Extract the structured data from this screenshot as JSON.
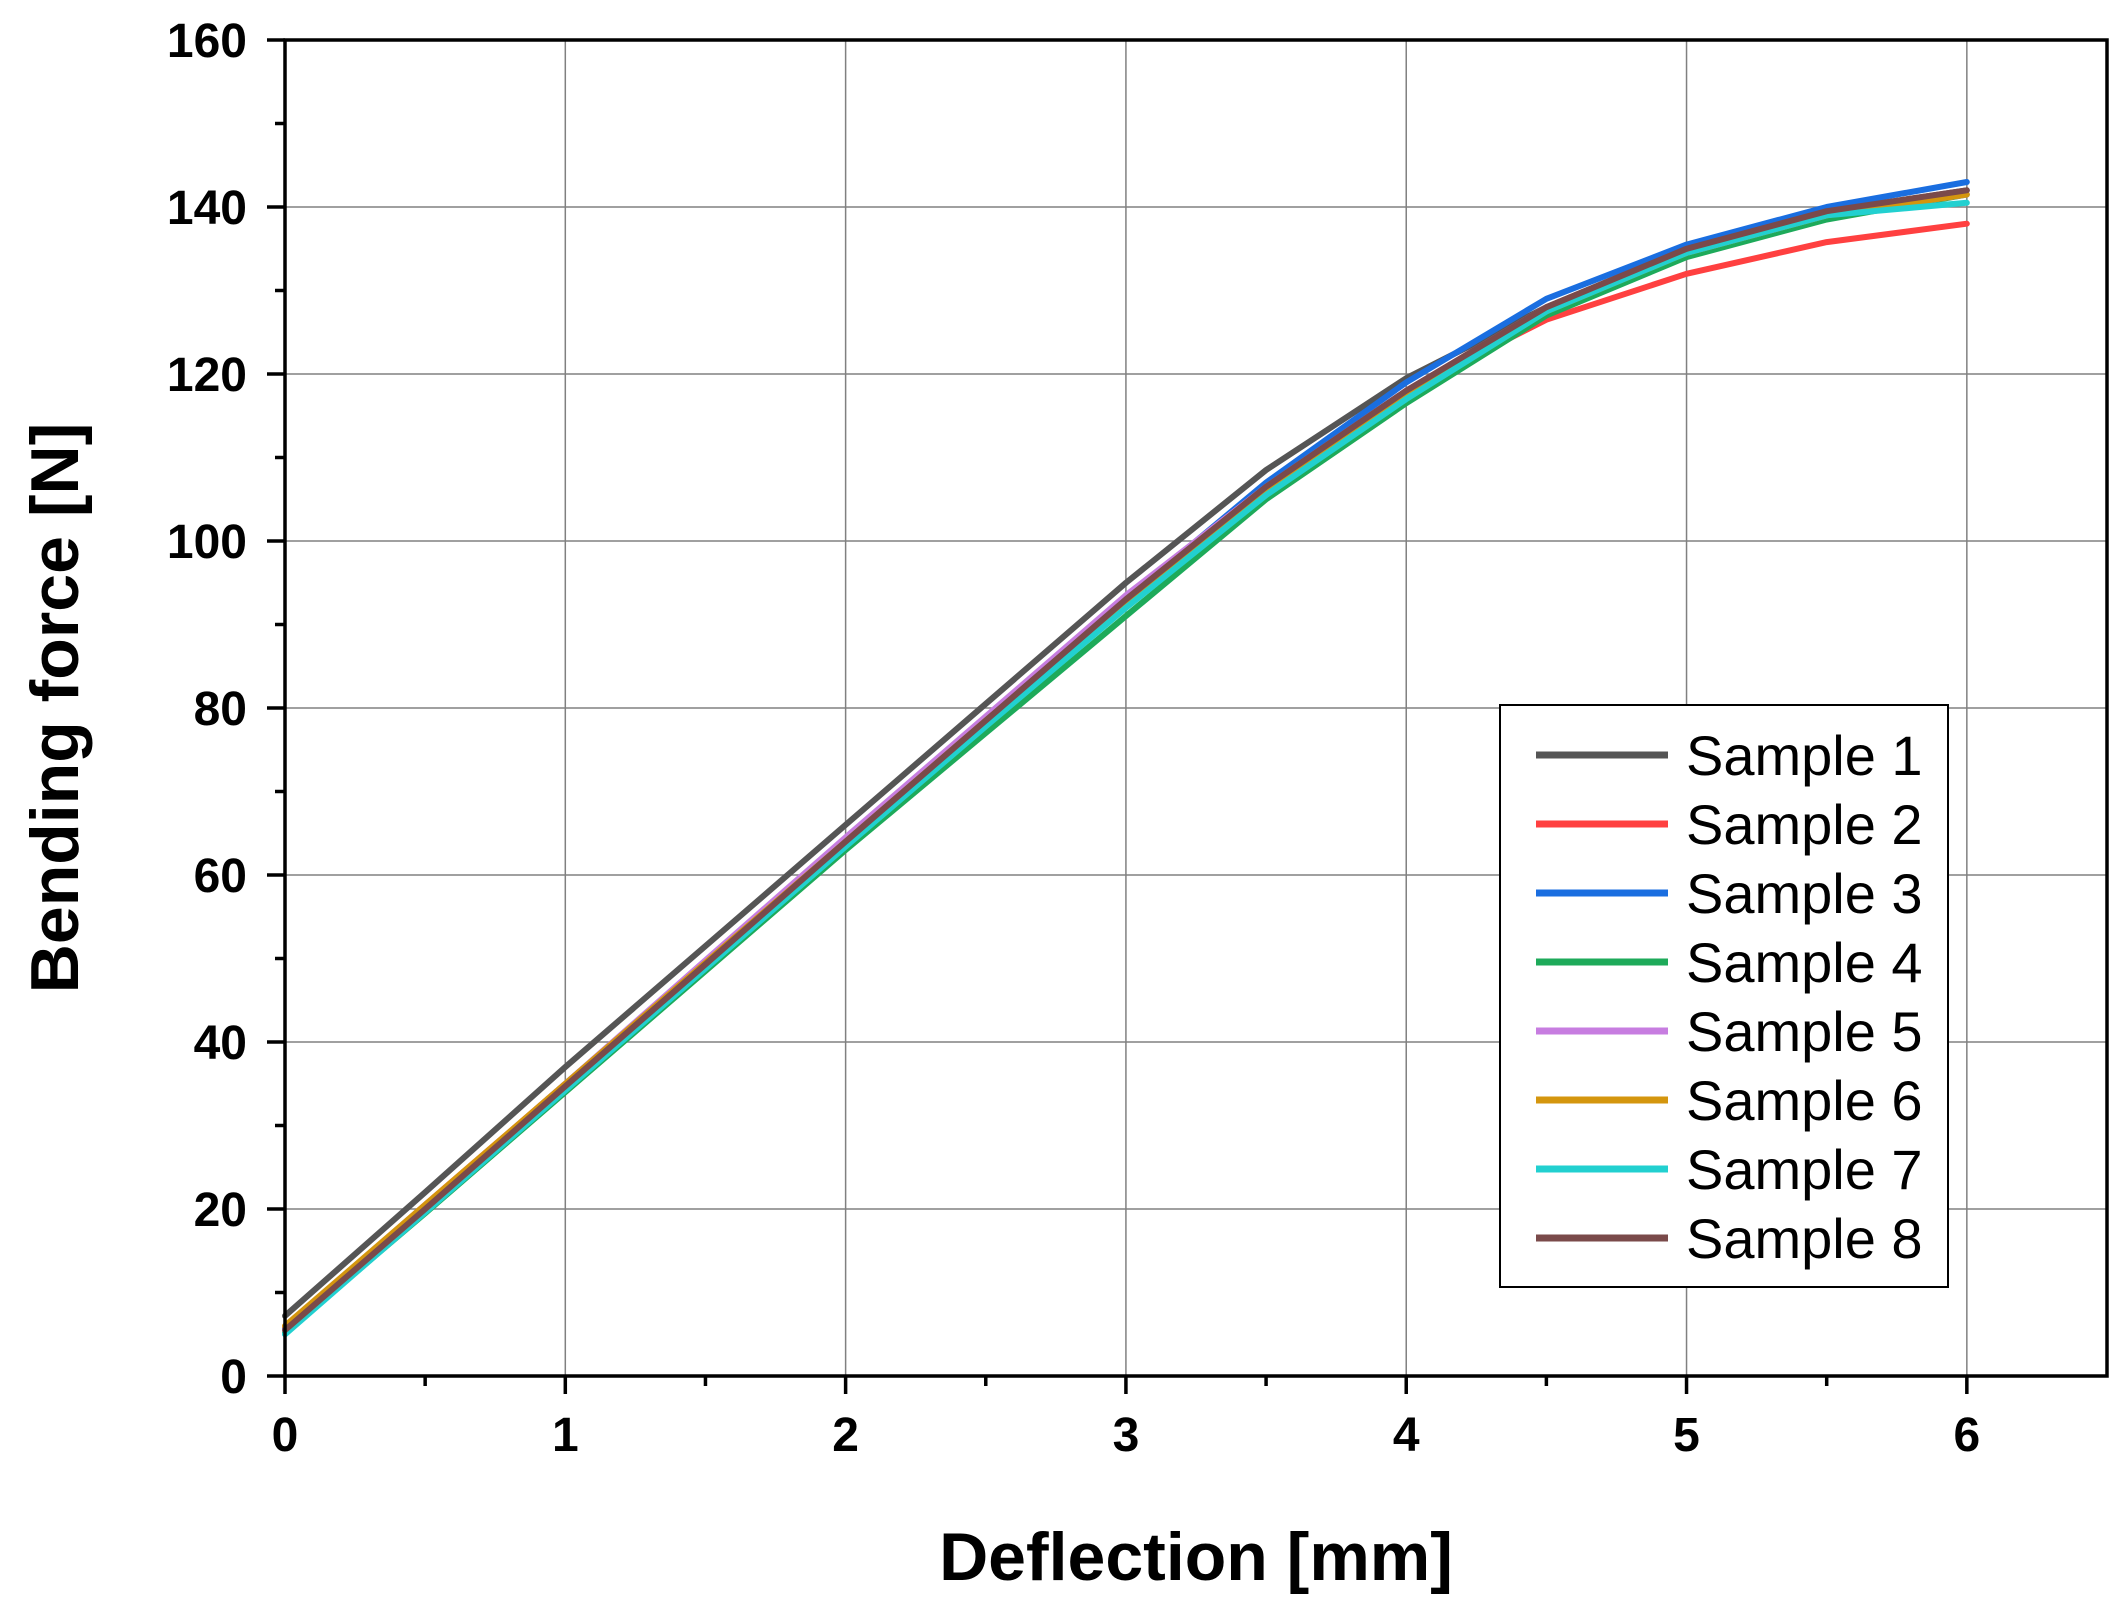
{
  "chart_data": {
    "type": "line",
    "title": "",
    "xlabel": "Deflection [mm]",
    "ylabel": "Bending force [N]",
    "xlim": [
      0,
      6.5
    ],
    "ylim": [
      0,
      160
    ],
    "xticks": [
      0,
      1,
      2,
      3,
      4,
      5,
      6
    ],
    "yticks": [
      0,
      20,
      40,
      60,
      80,
      100,
      120,
      140,
      160
    ],
    "xtick_labels": [
      "0",
      "1",
      "2",
      "3",
      "4",
      "5",
      "6"
    ],
    "ytick_labels": [
      "0",
      "20",
      "40",
      "60",
      "80",
      "100",
      "120",
      "140",
      "160"
    ],
    "grid": true,
    "legend_position": "lower-right",
    "x": [
      0,
      0.5,
      1,
      1.5,
      2,
      2.5,
      3,
      3.5,
      4,
      4.5,
      5,
      5.5,
      6
    ],
    "series": [
      {
        "name": "Sample 1",
        "color": "#555555",
        "values": [
          7.2,
          22,
          37,
          51.5,
          66,
          80.5,
          95,
          108.5,
          119.5,
          128,
          135,
          139.5,
          142
        ]
      },
      {
        "name": "Sample 2",
        "color": "#ff4040",
        "values": [
          5.8,
          20.5,
          35,
          49.5,
          64,
          78.5,
          92.5,
          106,
          118,
          126.5,
          132,
          135.8,
          138
        ]
      },
      {
        "name": "Sample 3",
        "color": "#1a6ee0",
        "values": [
          5.6,
          20.3,
          35,
          49.5,
          64,
          78.5,
          93,
          107,
          119,
          129,
          135.5,
          140,
          143
        ]
      },
      {
        "name": "Sample 4",
        "color": "#1eaa5a",
        "values": [
          5.2,
          19.5,
          34,
          48.5,
          63,
          77,
          91,
          105,
          116.5,
          127,
          134,
          138.5,
          141.5
        ]
      },
      {
        "name": "Sample 5",
        "color": "#c77de0",
        "values": [
          5.5,
          20.3,
          35,
          49.8,
          64.5,
          79,
          93.5,
          106.5,
          118,
          128,
          134.5,
          139,
          141.5
        ]
      },
      {
        "name": "Sample 6",
        "color": "#d4960e",
        "values": [
          6.0,
          20.5,
          35,
          49.5,
          64,
          78.5,
          92.5,
          106,
          117.5,
          127.5,
          134.5,
          139,
          141.5
        ]
      },
      {
        "name": "Sample 7",
        "color": "#22d0d0",
        "values": [
          5.0,
          19.6,
          34.2,
          48.8,
          63.4,
          77.8,
          92,
          105.5,
          117,
          127.5,
          134.5,
          139,
          140.5
        ]
      },
      {
        "name": "Sample 8",
        "color": "#7a4a4a",
        "values": [
          5.5,
          20,
          34.7,
          49.3,
          64,
          78.5,
          93,
          106.5,
          118,
          128,
          135,
          139.5,
          142
        ]
      }
    ]
  }
}
